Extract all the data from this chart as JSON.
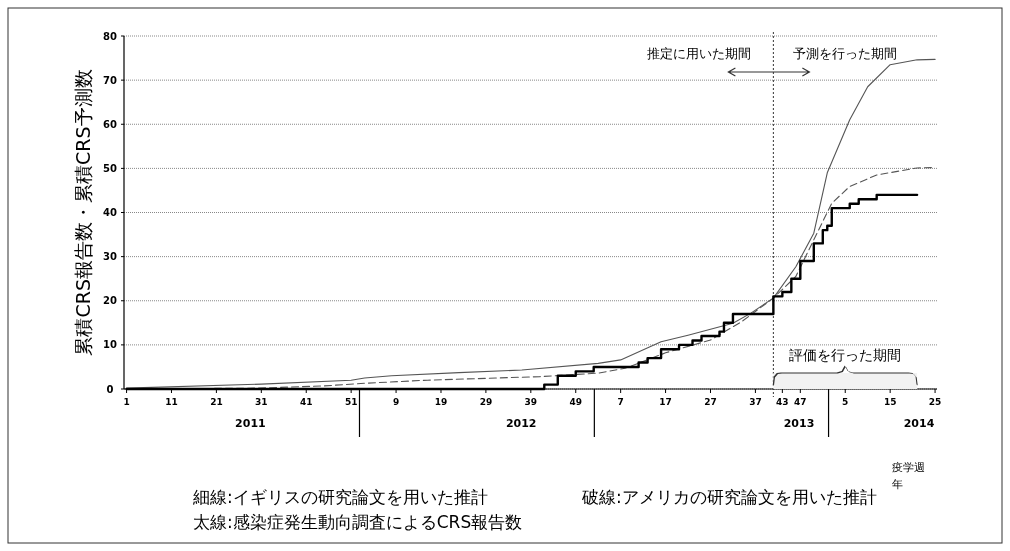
{
  "chart_data": {
    "type": "line",
    "ylabel": "累積CRS報告数・累積CRS予測数",
    "xlabel": "疫学週",
    "x2label": "年",
    "xlim": [
      "2010-12-30",
      "2014-06-19"
    ],
    "ylim": [
      0,
      80
    ],
    "yticks": [
      0,
      10,
      20,
      30,
      40,
      50,
      60,
      70,
      80
    ],
    "xticks": [
      {
        "value": "2011-01-03",
        "label": "1"
      },
      {
        "value": "2011-03-14",
        "label": "11"
      },
      {
        "value": "2011-05-23",
        "label": "21"
      },
      {
        "value": "2011-08-01",
        "label": "31"
      },
      {
        "value": "2011-10-10",
        "label": "41"
      },
      {
        "value": "2011-12-19",
        "label": "51"
      },
      {
        "value": "2012-02-27",
        "label": "9"
      },
      {
        "value": "2012-05-07",
        "label": "19"
      },
      {
        "value": "2012-07-16",
        "label": "29"
      },
      {
        "value": "2012-09-24",
        "label": "39"
      },
      {
        "value": "2012-12-03",
        "label": "49"
      },
      {
        "value": "2013-02-11",
        "label": "7"
      },
      {
        "value": "2013-04-22",
        "label": "17"
      },
      {
        "value": "2013-07-01",
        "label": "27"
      },
      {
        "value": "2013-09-09",
        "label": "37"
      },
      {
        "value": "2013-10-21",
        "label": "43"
      },
      {
        "value": "2013-11-18",
        "label": "47"
      },
      {
        "value": "2014-01-27",
        "label": "5"
      },
      {
        "value": "2014-04-07",
        "label": "15"
      },
      {
        "value": "2014-06-16",
        "label": "25"
      }
    ],
    "x2lim": [
      "2010-12-30",
      "2014-06-19"
    ],
    "x2ticks": [
      {
        "value": "2011-07-15",
        "label": "2011"
      },
      {
        "value": "2012-09-09",
        "label": "2012"
      },
      {
        "value": "2013-11-16",
        "label": "2013"
      },
      {
        "value": "2014-05-22",
        "label": "2014"
      }
    ],
    "grid": "y",
    "ref_lines": [
      {
        "axis": "x",
        "value": "2013-10-07",
        "line_style": "dotted"
      }
    ],
    "bands": [
      {
        "axis": "x",
        "from": "2013-10-07",
        "to": "2014-05-19",
        "label": "評価を行った期間",
        "color": "#f2f2f2"
      }
    ],
    "annotations": [
      "推定に用いた期間",
      "予測を行った期間",
      "細線:イギリスの研究論文を用いた推計",
      "破線:アメリカの研究論文を用いた推計",
      "太線:感染症発生動向調査によるCRS報告数"
    ],
    "series": [
      {
        "color": "#555555",
        "line_style": "solid",
        "x": [
          "2011-01-03",
          "2011-08-01",
          "2011-12-19",
          "2012-01-09",
          "2012-02-20",
          "2012-06-04",
          "2012-09-10",
          "2013-01-07",
          "2013-02-11",
          "2013-04-15",
          "2013-05-27",
          "2013-08-05",
          "2013-09-02",
          "2013-10-07",
          "2013-11-11",
          "2013-12-09",
          "2013-12-30",
          "2014-02-03",
          "2014-03-03",
          "2014-04-07",
          "2014-05-19",
          "2014-06-16"
        ],
        "values": [
          0.2,
          1.1,
          2,
          2.5,
          3,
          3.7,
          4.3,
          5.8,
          6.6,
          10.7,
          12.2,
          14.9,
          17.2,
          20.6,
          27.7,
          35.3,
          49,
          61,
          68.5,
          73.5,
          74.6,
          74.7
        ]
      },
      {
        "color": "#555555",
        "line_style": "dashed",
        "x": [
          "2011-01-03",
          "2011-07-25",
          "2011-11-07",
          "2012-01-09",
          "2012-04-16",
          "2012-10-08",
          "2013-01-07",
          "2013-02-18",
          "2013-04-22",
          "2013-07-01",
          "2013-08-19",
          "2013-10-07",
          "2013-11-11",
          "2013-12-09",
          "2014-01-06",
          "2014-02-03",
          "2014-03-17",
          "2014-05-19",
          "2014-06-16"
        ],
        "values": [
          0,
          0.2,
          0.7,
          1.3,
          2,
          2.8,
          3.6,
          4.7,
          8.2,
          11.1,
          15.3,
          20.6,
          25.5,
          33.8,
          42.1,
          45.9,
          48.5,
          50.1,
          50.2
        ]
      },
      {
        "type": "step",
        "color": "#000000",
        "line_style": "solid",
        "x": [
          "2011-01-03",
          "2012-10-15",
          "2012-11-05",
          "2012-12-03",
          "2012-12-31",
          "2013-03-11",
          "2013-03-25",
          "2013-04-15",
          "2013-05-13",
          "2013-06-03",
          "2013-06-17",
          "2013-07-15",
          "2013-07-22",
          "2013-08-05",
          "2013-10-07",
          "2013-10-21",
          "2013-11-04",
          "2013-11-18",
          "2013-12-09",
          "2013-12-23",
          "2013-12-30",
          "2014-01-06",
          "2014-02-03",
          "2014-02-17",
          "2014-03-17",
          "2014-05-19"
        ],
        "values": [
          0,
          1,
          3,
          4,
          5,
          6,
          7,
          9,
          10,
          11,
          12,
          13,
          15,
          17,
          21,
          22,
          25,
          29,
          33,
          36,
          37,
          41,
          42,
          43,
          44,
          44
        ]
      }
    ]
  }
}
